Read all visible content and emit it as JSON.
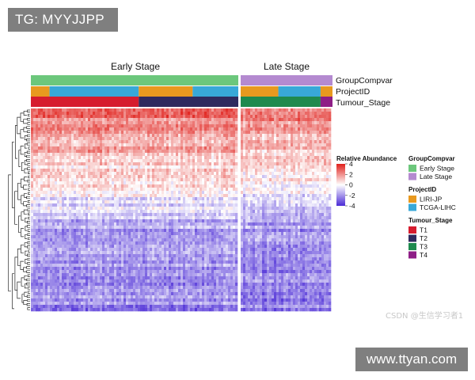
{
  "watermarks": {
    "top_left": "TG: MYYJJPP",
    "bottom_right": "www.ttyan.com",
    "csdn": "CSDN @生信学习者1"
  },
  "chart_data": {
    "type": "heatmap",
    "title": "",
    "columns": {
      "groups": [
        "Early Stage",
        "Late Stage"
      ],
      "annotation_tracks": [
        "GroupCompvar",
        "ProjectID",
        "Tumour_Stage"
      ]
    },
    "color_scale": {
      "title": "Relative Abundance",
      "ticks": [
        4,
        2,
        0,
        -2,
        -4
      ],
      "range": [
        -4,
        4
      ],
      "colors": {
        "high": "#e0201b",
        "mid": "#ffffff",
        "low": "#4b2bd6"
      }
    },
    "legends": [
      {
        "title": "GroupCompvar",
        "items": [
          {
            "label": "Early Stage",
            "color": "#6cc77c"
          },
          {
            "label": "Late Stage",
            "color": "#b48ad0"
          }
        ]
      },
      {
        "title": "ProjectID",
        "items": [
          {
            "label": "LIRI-JP",
            "color": "#e8991f"
          },
          {
            "label": "TCGA-LIHC",
            "color": "#38a8d8"
          }
        ]
      },
      {
        "title": "Tumour_Stage",
        "items": [
          {
            "label": "T1",
            "color": "#d61c2e"
          },
          {
            "label": "T2",
            "color": "#2f2a5e"
          },
          {
            "label": "T3",
            "color": "#1f8a4e"
          },
          {
            "label": "T4",
            "color": "#8e1e86"
          }
        ]
      }
    ],
    "annotation_segments": {
      "GroupCompvar": {
        "Early Stage": [
          {
            "value": "Early Stage",
            "fraction": 1.0
          }
        ],
        "Late Stage": [
          {
            "value": "Late Stage",
            "fraction": 1.0
          }
        ]
      },
      "ProjectID": {
        "Early Stage": [
          {
            "value": "LIRI-JP",
            "fraction": 0.09
          },
          {
            "value": "TCGA-LIHC",
            "fraction": 0.43
          },
          {
            "value": "LIRI-JP",
            "fraction": 0.26
          },
          {
            "value": "TCGA-LIHC",
            "fraction": 0.22
          }
        ],
        "Late Stage": [
          {
            "value": "LIRI-JP",
            "fraction": 0.41
          },
          {
            "value": "TCGA-LIHC",
            "fraction": 0.46
          },
          {
            "value": "LIRI-JP",
            "fraction": 0.13
          }
        ]
      },
      "Tumour_Stage": {
        "Early Stage": [
          {
            "value": "T1",
            "fraction": 0.52
          },
          {
            "value": "T2",
            "fraction": 0.48
          }
        ],
        "Late Stage": [
          {
            "value": "T3",
            "fraction": 0.87
          },
          {
            "value": "T4",
            "fraction": 0.13
          }
        ]
      }
    },
    "row_trend": [
      {
        "row_fraction": 0.0,
        "abundance": 2.6
      },
      {
        "row_fraction": 0.25,
        "abundance": 1.0
      },
      {
        "row_fraction": 0.4,
        "abundance": 0.0
      },
      {
        "row_fraction": 0.6,
        "abundance": -1.8
      },
      {
        "row_fraction": 1.0,
        "abundance": -2.2
      }
    ]
  }
}
